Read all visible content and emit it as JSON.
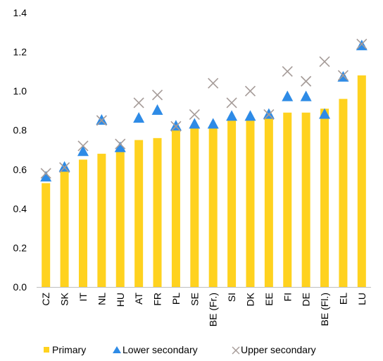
{
  "chart_data": {
    "type": "bar",
    "title": "",
    "xlabel": "",
    "ylabel": "",
    "ylim": [
      0,
      1.4
    ],
    "yticks": [
      "0.0",
      "0.2",
      "0.4",
      "0.6",
      "0.8",
      "1.0",
      "1.2",
      "1.4"
    ],
    "grid": false,
    "legend_position": "bottom",
    "categories": [
      "CZ",
      "SK",
      "IT",
      "NL",
      "HU",
      "AT",
      "FR",
      "PL",
      "SE",
      "BE (Fr.)",
      "SI",
      "DK",
      "EE",
      "FI",
      "DE",
      "BE (Fl.)",
      "EL",
      "LU"
    ],
    "series": [
      {
        "name": "Primary",
        "type": "bar",
        "color": "#FFD21F",
        "values": [
          0.53,
          0.59,
          0.65,
          0.68,
          0.69,
          0.75,
          0.76,
          0.8,
          0.81,
          0.81,
          0.85,
          0.86,
          0.86,
          0.89,
          0.89,
          0.91,
          0.96,
          1.08
        ]
      },
      {
        "name": "Lower secondary",
        "type": "marker",
        "marker": "triangle",
        "color": "#2E8BE6",
        "values": [
          0.56,
          0.61,
          0.69,
          0.85,
          0.71,
          0.86,
          0.9,
          0.82,
          0.83,
          0.83,
          0.87,
          0.87,
          0.88,
          0.97,
          0.97,
          0.88,
          1.07,
          1.23
        ]
      },
      {
        "name": "Upper secondary",
        "type": "marker",
        "marker": "cross",
        "color": "#A59B98",
        "values": [
          0.58,
          0.61,
          0.72,
          0.85,
          0.73,
          0.94,
          0.98,
          0.82,
          0.88,
          1.04,
          0.94,
          1.0,
          0.88,
          1.1,
          1.05,
          1.15,
          1.08,
          1.24
        ]
      }
    ]
  }
}
